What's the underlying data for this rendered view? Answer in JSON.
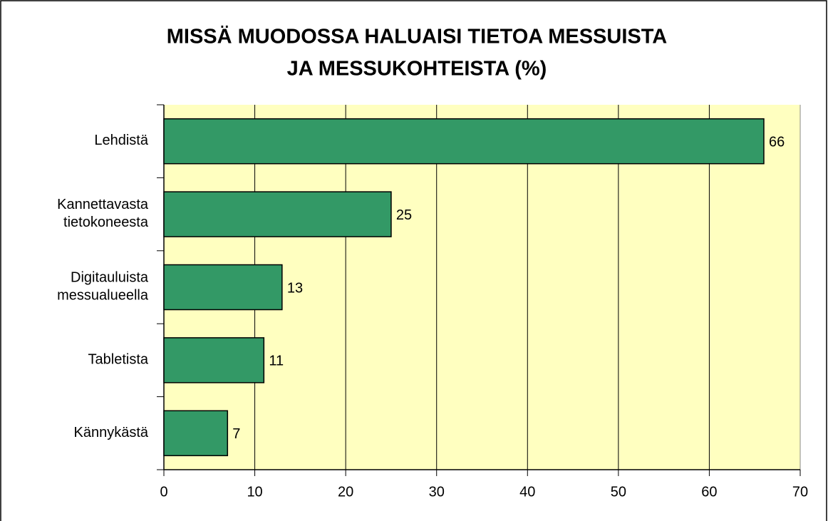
{
  "chart_data": {
    "type": "bar",
    "orientation": "horizontal",
    "title": [
      "MISSÄ MUODOSSA HALUAISI TIETOA MESSUISTA",
      "JA MESSUKOHTEISTA (%)"
    ],
    "categories": [
      "Lehdistä",
      "Kannettavasta tietokoneesta",
      "Digitauluista messualueella",
      "Tabletista",
      "Kännykästä"
    ],
    "values": [
      66,
      25,
      13,
      11,
      7
    ],
    "color": "#339966",
    "xlim": [
      0,
      70
    ],
    "xticks": [
      0,
      10,
      20,
      30,
      40,
      50,
      60,
      70
    ],
    "grid": true,
    "background": "#ffffc0"
  }
}
